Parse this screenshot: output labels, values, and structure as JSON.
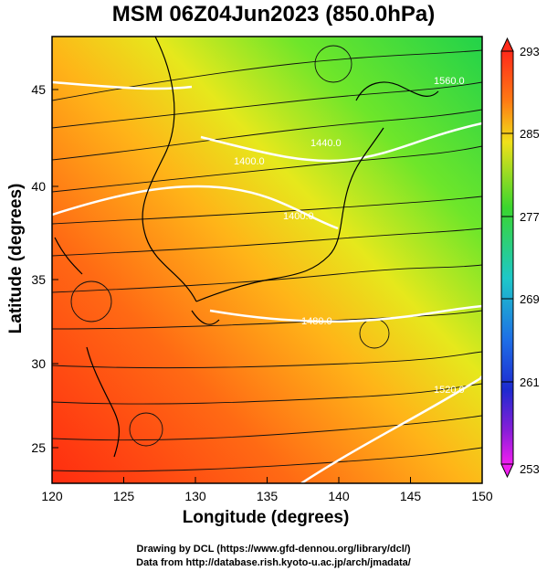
{
  "title": "MSM 06Z04Jun2023 (850.0hPa)",
  "xlabel": "Longitude (degrees)",
  "ylabel": "Latitude  (degrees)",
  "footer_line1": "Drawing by DCL (https://www.gfd-dennou.org/library/dcl/)",
  "footer_line2": "Data from http://database.rish.kyoto-u.ac.jp/arch/jmadata/",
  "map": {
    "xticks": [
      "120",
      "125",
      "130",
      "135",
      "140",
      "145",
      "150"
    ],
    "yticks": [
      "25",
      "30",
      "35",
      "40",
      "45"
    ],
    "contour_labels": [
      "1400.0",
      "1400.0",
      "1440.0",
      "1480.0",
      "1520.0",
      "1560.0"
    ]
  },
  "colorbar": {
    "labels": [
      "293",
      "285",
      "277",
      "269",
      "261",
      "253"
    ],
    "colors": [
      "#ff4b1e",
      "#f0f01e",
      "#2ddc2d",
      "#1ec8dc",
      "#1e32d2",
      "#e01ee0"
    ]
  }
}
